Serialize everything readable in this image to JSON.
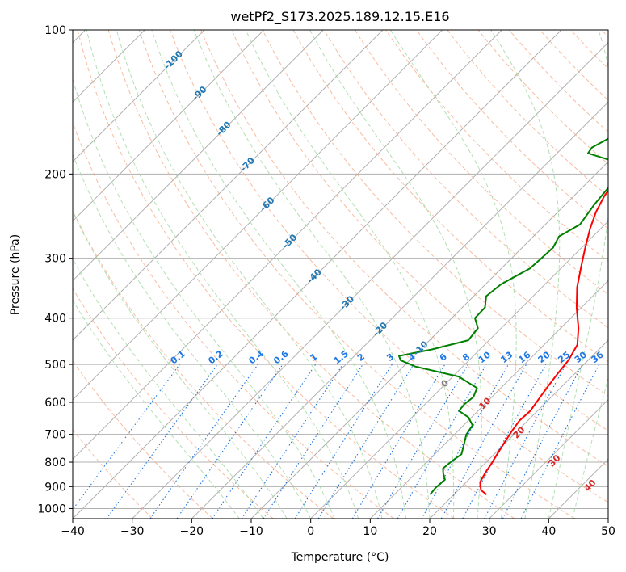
{
  "chart_data": {
    "type": "line",
    "title": "wetPf2_S173.2025.189.12.15.E16",
    "xlabel": "Temperature (°C)",
    "ylabel": "Pressure (hPa)",
    "xlim": [
      -40,
      50
    ],
    "ylim": [
      1050,
      100
    ],
    "y_scale": "log",
    "grid": true,
    "x_ticks": [
      "−40",
      "−30",
      "−20",
      "−10",
      "0",
      "10",
      "20",
      "30",
      "40",
      "50"
    ],
    "y_ticks": [
      "100",
      "200",
      "300",
      "400",
      "500",
      "600",
      "700",
      "800",
      "900",
      "1000"
    ],
    "series": [
      {
        "color": "#ff0000",
        "points": [
          [
            25.5,
            935
          ],
          [
            23.8,
            915
          ],
          [
            22.3,
            880
          ],
          [
            21.6,
            840
          ],
          [
            21.2,
            810
          ],
          [
            20.5,
            770
          ],
          [
            19.8,
            730
          ],
          [
            19.1,
            690
          ],
          [
            18.6,
            655
          ],
          [
            18.8,
            625
          ],
          [
            18.3,
            595
          ],
          [
            17.7,
            560
          ],
          [
            17.1,
            520
          ],
          [
            16.7,
            490
          ],
          [
            15.6,
            455
          ],
          [
            13.0,
            420
          ],
          [
            9.2,
            380
          ],
          [
            5.9,
            345
          ],
          [
            2.9,
            310
          ],
          [
            0.6,
            285
          ],
          [
            -1.8,
            260
          ],
          [
            -3.6,
            240
          ],
          [
            -4.9,
            222
          ],
          [
            -5.4,
            210
          ],
          [
            -3.6,
            200
          ],
          [
            0.8,
            190
          ],
          [
            6.3,
            182
          ],
          [
            9.5,
            175
          ],
          [
            12.5,
            165
          ],
          [
            16.0,
            154
          ],
          [
            18.8,
            143
          ],
          [
            20.6,
            135
          ],
          [
            22.6,
            128
          ],
          [
            26.0,
            119
          ],
          [
            29.7,
            110
          ],
          [
            32.8,
            101
          ]
        ]
      },
      {
        "color": "#008000",
        "points": [
          [
            16.0,
            935
          ],
          [
            15.8,
            905
          ],
          [
            16.0,
            870
          ],
          [
            14.7,
            845
          ],
          [
            13.8,
            825
          ],
          [
            14.0,
            800
          ],
          [
            14.5,
            770
          ],
          [
            13.3,
            735
          ],
          [
            12.0,
            700
          ],
          [
            11.5,
            670
          ],
          [
            9.5,
            645
          ],
          [
            6.8,
            625
          ],
          [
            6.6,
            605
          ],
          [
            6.9,
            585
          ],
          [
            6.0,
            560
          ],
          [
            1.0,
            530
          ],
          [
            -8.0,
            505
          ],
          [
            -11.5,
            490
          ],
          [
            -12.5,
            480
          ],
          [
            -8.0,
            465
          ],
          [
            -3.5,
            445
          ],
          [
            -3.9,
            420
          ],
          [
            -6.1,
            400
          ],
          [
            -6.2,
            380
          ],
          [
            -7.9,
            360
          ],
          [
            -7.4,
            340
          ],
          [
            -5.2,
            315
          ],
          [
            -5.0,
            300
          ],
          [
            -4.8,
            285
          ],
          [
            -5.7,
            270
          ],
          [
            -4.2,
            255
          ],
          [
            -5.1,
            232
          ],
          [
            -5.7,
            210
          ],
          [
            -5.1,
            200
          ],
          [
            -6.8,
            192
          ],
          [
            -10.0,
            187
          ],
          [
            -14.8,
            181
          ],
          [
            -15.1,
            176
          ],
          [
            -13.2,
            165
          ],
          [
            -11.9,
            155
          ],
          [
            -9.8,
            143
          ],
          [
            -8.2,
            135
          ],
          [
            -6.8,
            128
          ],
          [
            -4.1,
            119
          ],
          [
            -1.5,
            110
          ],
          [
            0.3,
            104
          ],
          [
            1.0,
            101
          ]
        ]
      }
    ],
    "isotherm_labels": [
      "-100",
      "-90",
      "-80",
      "-70",
      "-60",
      "-50",
      "-40",
      "-30",
      "-20",
      "-10",
      "0"
    ],
    "mixing_ratio_labels": [
      "0.1",
      "0.2",
      "0.4",
      "0.6",
      "1",
      "1.5",
      "2",
      "3",
      "4",
      "6",
      "8",
      "10",
      "13",
      "16",
      "20",
      "25",
      "30",
      "36"
    ],
    "moist_adiabat_labels": [
      "0",
      "10",
      "20",
      "30",
      "40"
    ],
    "colors": {
      "temperature": "#ff0000",
      "dewpoint": "#008000",
      "dry_adiabat": "#f4a582",
      "moist_adiabat": "#a6d9a6",
      "mixing_ratio": "#1f77e4",
      "isotherm_label": "#1f77b4",
      "moist_label": "#d62728",
      "zero_label": "#808080"
    }
  }
}
